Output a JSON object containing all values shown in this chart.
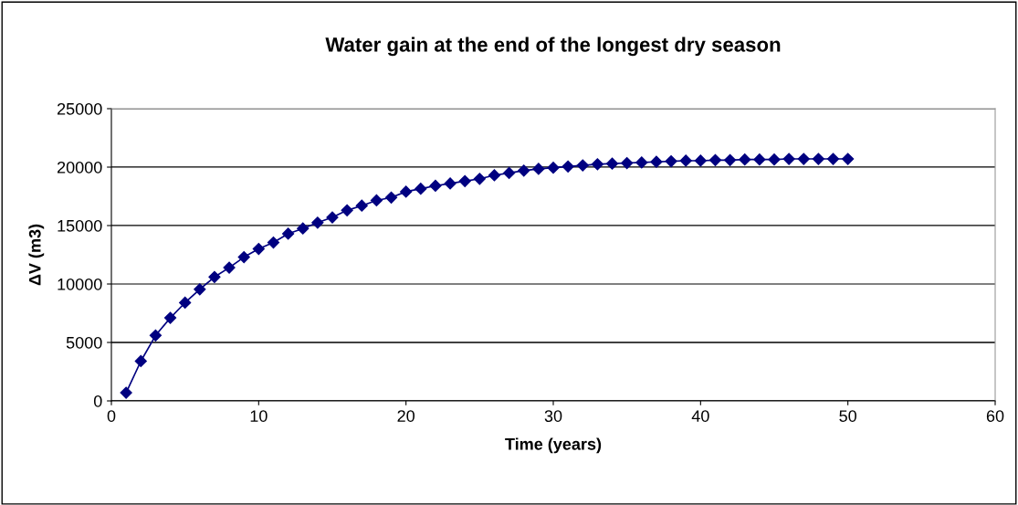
{
  "chart_data": {
    "type": "line",
    "title": "Water gain at the end of the longest dry season",
    "xlabel": "Time (years)",
    "ylabel": "ΔV (m3)",
    "x": [
      1,
      2,
      3,
      4,
      5,
      6,
      7,
      8,
      9,
      10,
      11,
      12,
      13,
      14,
      15,
      16,
      17,
      18,
      19,
      20,
      21,
      22,
      23,
      24,
      25,
      26,
      27,
      28,
      29,
      30,
      31,
      32,
      33,
      34,
      35,
      36,
      37,
      38,
      39,
      40,
      41,
      42,
      43,
      44,
      45,
      46,
      47,
      48,
      49,
      50
    ],
    "series": [
      {
        "color": "#000080",
        "values": [
          700,
          3400,
          5600,
          7100,
          8400,
          9550,
          10600,
          11400,
          12300,
          13000,
          13550,
          14300,
          14750,
          15250,
          15700,
          16300,
          16700,
          17150,
          17400,
          17900,
          18150,
          18400,
          18600,
          18800,
          19000,
          19300,
          19500,
          19700,
          19850,
          19950,
          20050,
          20150,
          20250,
          20300,
          20350,
          20400,
          20450,
          20500,
          20550,
          20550,
          20600,
          20600,
          20650,
          20650,
          20650,
          20700,
          20700,
          20700,
          20700,
          20700
        ]
      }
    ],
    "xlim": [
      0,
      60
    ],
    "xticks": [
      0,
      10,
      20,
      30,
      40,
      50,
      60
    ],
    "ylim": [
      0,
      25000
    ],
    "yticks": [
      0,
      5000,
      10000,
      15000,
      20000,
      25000
    ],
    "grid": "y",
    "marker": "diamond",
    "line_style": "solid",
    "legend": false
  }
}
